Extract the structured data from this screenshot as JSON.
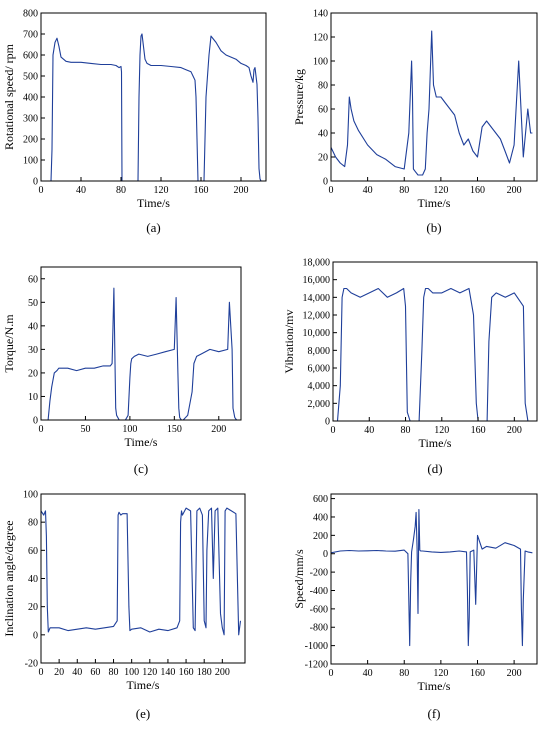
{
  "colors": {
    "series": "#1f3f9a",
    "axis": "#000000"
  },
  "chart_data": [
    {
      "type": "line",
      "caption": "(a)",
      "xlabel": "Time/s",
      "ylabel": "Rotational speed/ rpm",
      "xlim": [
        0,
        225
      ],
      "ylim": [
        0,
        800
      ],
      "xticks": [
        0,
        40,
        80,
        120,
        160,
        200
      ],
      "yticks": [
        0,
        100,
        200,
        300,
        400,
        500,
        600,
        700,
        800
      ],
      "series": [
        {
          "x": [
            10,
            11,
            12,
            14,
            16,
            18,
            20,
            25,
            30,
            40,
            50,
            60,
            70,
            75,
            78,
            80,
            80.5,
            81,
            82,
            90,
            93,
            95,
            96,
            97,
            98,
            99,
            100,
            101,
            102,
            104,
            106,
            110,
            120,
            130,
            140,
            145,
            150,
            152,
            154,
            155,
            156,
            157,
            160,
            161,
            162,
            163,
            165,
            168,
            170,
            175,
            180,
            185,
            190,
            195,
            200,
            205,
            208,
            210,
            212,
            213,
            214,
            215,
            216,
            217,
            218,
            219,
            220
          ],
          "y": [
            0,
            150,
            600,
            660,
            680,
            640,
            590,
            570,
            565,
            565,
            560,
            555,
            555,
            550,
            540,
            545,
            520,
            0,
            0,
            0,
            0,
            0,
            0,
            0,
            400,
            600,
            690,
            700,
            660,
            580,
            560,
            550,
            550,
            545,
            540,
            530,
            520,
            500,
            480,
            400,
            200,
            0,
            0,
            0,
            0,
            0,
            400,
            600,
            690,
            660,
            620,
            600,
            590,
            580,
            560,
            550,
            540,
            500,
            470,
            530,
            540,
            500,
            460,
            300,
            60,
            10,
            0
          ]
        }
      ]
    },
    {
      "type": "line",
      "caption": "(b)",
      "xlabel": "Time/s",
      "ylabel": "Pressure/kg",
      "xlim": [
        0,
        225
      ],
      "ylim": [
        0,
        140
      ],
      "xticks": [
        0,
        40,
        80,
        120,
        160,
        200
      ],
      "yticks": [
        0,
        20,
        40,
        60,
        80,
        100,
        120,
        140
      ],
      "series": [
        {
          "x": [
            0,
            5,
            10,
            15,
            18,
            20,
            22,
            25,
            30,
            40,
            50,
            60,
            70,
            80,
            85,
            88,
            89,
            90,
            92,
            95,
            100,
            103,
            105,
            107,
            110,
            112,
            115,
            120,
            125,
            130,
            135,
            140,
            145,
            150,
            155,
            160,
            165,
            170,
            175,
            180,
            185,
            190,
            195,
            200,
            205,
            210,
            215,
            218,
            220
          ],
          "y": [
            28,
            20,
            15,
            12,
            30,
            70,
            60,
            50,
            42,
            30,
            22,
            18,
            12,
            10,
            40,
            100,
            70,
            10,
            8,
            5,
            5,
            10,
            40,
            60,
            125,
            80,
            70,
            70,
            65,
            60,
            55,
            40,
            30,
            35,
            25,
            20,
            45,
            50,
            45,
            40,
            35,
            25,
            15,
            30,
            100,
            20,
            60,
            40,
            40
          ]
        }
      ]
    },
    {
      "type": "line",
      "caption": "(c)",
      "xlabel": "Time/s",
      "ylabel": "Torque/N.m",
      "xlim": [
        0,
        225
      ],
      "ylim": [
        0,
        65
      ],
      "xticks": [
        0,
        50,
        100,
        150,
        200
      ],
      "yticks": [
        0,
        10,
        20,
        30,
        40,
        50,
        60
      ],
      "series": [
        {
          "x": [
            0,
            8,
            10,
            12,
            15,
            18,
            20,
            30,
            40,
            50,
            60,
            70,
            78,
            80,
            82,
            83,
            84,
            85,
            88,
            95,
            98,
            100,
            101,
            102,
            105,
            110,
            120,
            130,
            140,
            150,
            152,
            154,
            155,
            156,
            158,
            160,
            165,
            170,
            172,
            175,
            180,
            190,
            200,
            210,
            212,
            215,
            216,
            218,
            220
          ],
          "y": [
            0,
            0,
            8,
            14,
            20,
            21,
            22,
            22,
            21,
            22,
            22,
            23,
            23,
            24,
            56,
            30,
            5,
            2,
            0,
            0,
            2,
            18,
            24,
            26,
            27,
            28,
            27,
            28,
            29,
            30,
            52,
            20,
            5,
            1,
            0,
            0,
            2,
            12,
            24,
            27,
            28,
            30,
            29,
            30,
            50,
            30,
            5,
            1,
            0
          ]
        }
      ]
    },
    {
      "type": "line",
      "caption": "(d)",
      "xlabel": "Time/s",
      "ylabel": "Vibration/mv",
      "xlim": [
        0,
        225
      ],
      "ylim": [
        0,
        18000
      ],
      "xticks": [
        0,
        40,
        80,
        120,
        160,
        200
      ],
      "yticks": [
        0,
        2000,
        4000,
        6000,
        8000,
        10000,
        12000,
        14000,
        16000,
        18000
      ],
      "xtick_labels": [
        "0",
        "40",
        "80",
        "120",
        "160",
        "200"
      ],
      "ytick_labels": [
        "0",
        "2,000",
        "4,000",
        "6,000",
        "8,000",
        "10,000",
        "12,000",
        "14,000",
        "16,000",
        "18,000"
      ],
      "series": [
        {
          "x": [
            0,
            5,
            8,
            10,
            12,
            15,
            20,
            30,
            40,
            50,
            60,
            70,
            78,
            80,
            82,
            85,
            90,
            95,
            98,
            100,
            102,
            105,
            110,
            120,
            130,
            140,
            150,
            155,
            158,
            160,
            165,
            170,
            172,
            175,
            180,
            190,
            200,
            210,
            212,
            215,
            220
          ],
          "y": [
            0,
            0,
            4000,
            14000,
            15000,
            15000,
            14500,
            14000,
            14500,
            15000,
            14000,
            14500,
            15000,
            13000,
            1000,
            0,
            0,
            0,
            8000,
            14000,
            15000,
            15000,
            14500,
            14500,
            15000,
            14500,
            15000,
            12000,
            2000,
            0,
            0,
            0,
            9000,
            14000,
            14500,
            14000,
            14500,
            13000,
            2000,
            0,
            0
          ]
        }
      ]
    },
    {
      "type": "line",
      "caption": "(e)",
      "xlabel": "Time/s",
      "ylabel": "Inclination angle/degree",
      "xlim": [
        0,
        225
      ],
      "ylim": [
        -20,
        100
      ],
      "xticks": [
        0,
        20,
        40,
        60,
        80,
        100,
        120,
        140,
        160,
        180,
        200
      ],
      "yticks": [
        -20,
        0,
        20,
        40,
        60,
        80,
        100
      ],
      "series": [
        {
          "x": [
            0,
            3,
            5,
            6,
            7,
            8,
            10,
            20,
            30,
            40,
            50,
            60,
            70,
            80,
            84,
            85,
            86,
            88,
            90,
            95,
            97,
            98,
            100,
            110,
            120,
            130,
            140,
            150,
            153,
            154,
            155,
            156,
            160,
            165,
            168,
            170,
            172,
            175,
            178,
            180,
            182,
            183,
            185,
            188,
            190,
            192,
            195,
            198,
            200,
            202,
            203,
            205,
            210,
            215,
            218,
            220
          ],
          "y": [
            88,
            85,
            88,
            70,
            20,
            2,
            5,
            5,
            3,
            4,
            5,
            4,
            5,
            6,
            10,
            85,
            87,
            85,
            86,
            86,
            20,
            3,
            4,
            5,
            2,
            4,
            3,
            5,
            10,
            80,
            88,
            85,
            90,
            88,
            5,
            3,
            88,
            90,
            85,
            10,
            5,
            60,
            88,
            90,
            40,
            88,
            90,
            15,
            5,
            0,
            88,
            90,
            88,
            86,
            0,
            10
          ]
        }
      ]
    },
    {
      "type": "line",
      "caption": "(f)",
      "xlabel": "Time/s",
      "ylabel": "Speed/mm/s",
      "xlim": [
        0,
        225
      ],
      "ylim": [
        -1200,
        650
      ],
      "xticks": [
        0,
        40,
        80,
        120,
        160,
        200
      ],
      "yticks": [
        -1200,
        -1000,
        -800,
        -600,
        -400,
        -200,
        0,
        200,
        400,
        600
      ],
      "series": [
        {
          "x": [
            0,
            10,
            20,
            30,
            40,
            50,
            60,
            70,
            80,
            84,
            85,
            86,
            87,
            88,
            90,
            92,
            93,
            94,
            95,
            96,
            97,
            98,
            100,
            110,
            120,
            130,
            140,
            148,
            149,
            150,
            151,
            152,
            154,
            156,
            158,
            160,
            165,
            170,
            180,
            190,
            200,
            207,
            208,
            209,
            210,
            212,
            215,
            220
          ],
          "y": [
            10,
            30,
            35,
            30,
            32,
            35,
            30,
            28,
            40,
            0,
            -500,
            -1000,
            -300,
            20,
            150,
            300,
            450,
            50,
            -650,
            480,
            40,
            30,
            30,
            20,
            15,
            20,
            30,
            20,
            -400,
            -1000,
            -700,
            20,
            30,
            40,
            -550,
            200,
            50,
            80,
            60,
            120,
            90,
            50,
            -600,
            -1000,
            -500,
            30,
            20,
            10
          ]
        }
      ]
    }
  ]
}
